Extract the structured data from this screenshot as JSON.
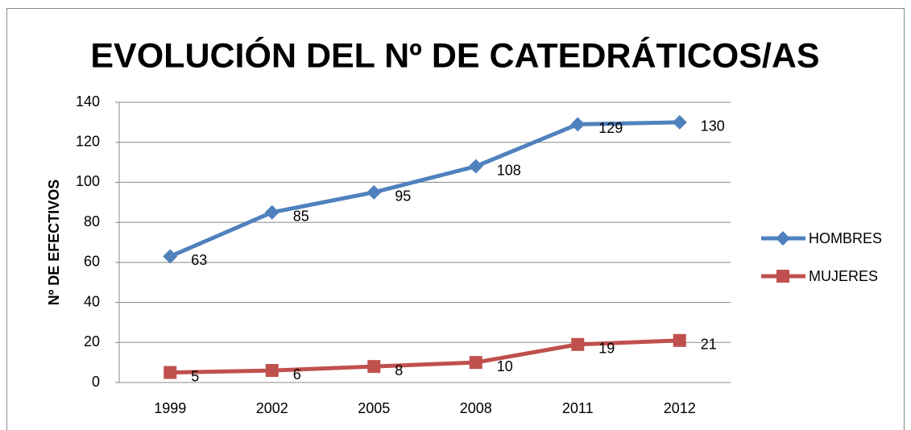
{
  "chart_data": {
    "type": "line",
    "title": "EVOLUCIÓN DEL Nº DE CATEDRÁTICOS/AS",
    "y_label": "Nº DE EFECTIVOS",
    "categories": [
      "1999",
      "2002",
      "2005",
      "2008",
      "2011",
      "2012"
    ],
    "series": [
      {
        "name": "HOMBRES",
        "color": "#4f81bd",
        "marker": "diamond",
        "values": [
          63,
          85,
          95,
          108,
          129,
          130
        ]
      },
      {
        "name": "MUJERES",
        "color": "#c0504d",
        "marker": "square",
        "values": [
          5,
          6,
          8,
          10,
          19,
          21
        ]
      }
    ],
    "ylim": [
      0,
      140
    ],
    "yticks": [
      0,
      20,
      40,
      60,
      80,
      100,
      120,
      140
    ],
    "grid": true,
    "legend": "right",
    "data_labels": true
  }
}
